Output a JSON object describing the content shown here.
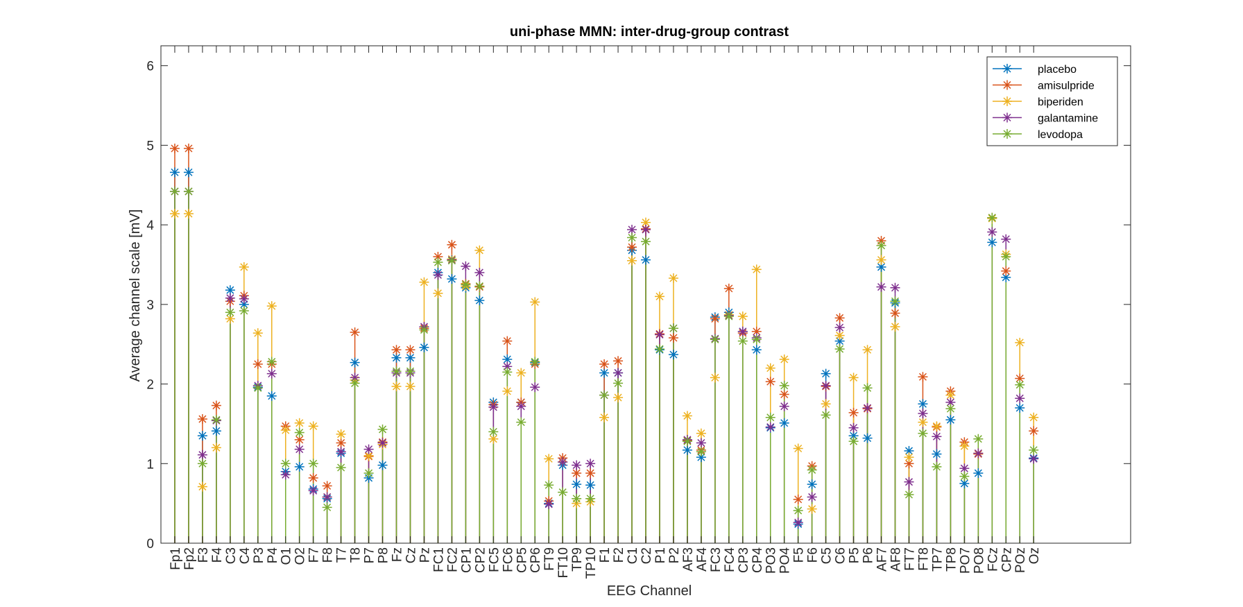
{
  "chart_data": {
    "type": "stem",
    "title": "uni-phase MMN: inter-drug-group contrast",
    "xlabel": "EEG Channel",
    "ylabel": "Average channel scale [mV]",
    "ylim": [
      0,
      6.25
    ],
    "yticks": [
      0,
      1,
      2,
      3,
      4,
      5,
      6
    ],
    "xlim": [
      0,
      70
    ],
    "grid": false,
    "legend_position": "top-right",
    "categories": [
      "Fp1",
      "Fp2",
      "F3",
      "F4",
      "C3",
      "C4",
      "P3",
      "P4",
      "O1",
      "O2",
      "F7",
      "F8",
      "T7",
      "T8",
      "P7",
      "P8",
      "Fz",
      "Cz",
      "Pz",
      "FC1",
      "FC2",
      "CP1",
      "CP2",
      "FC5",
      "FC6",
      "CP5",
      "CP6",
      "FT9",
      "FT10",
      "TP9",
      "TP10",
      "F1",
      "F2",
      "C1",
      "C2",
      "P1",
      "P2",
      "AF3",
      "AF4",
      "FC3",
      "FC4",
      "CP3",
      "CP4",
      "PO3",
      "PO4",
      "F5",
      "F6",
      "C5",
      "C6",
      "P5",
      "P6",
      "AF7",
      "AF8",
      "FT7",
      "FT8",
      "TP7",
      "TP8",
      "PO7",
      "PO8",
      "FCz",
      "CPz",
      "POz",
      "Oz"
    ],
    "series": [
      {
        "name": "placebo",
        "color": "#0072BD",
        "values": [
          4.66,
          4.66,
          1.35,
          1.41,
          3.18,
          3.0,
          1.96,
          1.85,
          0.9,
          0.96,
          0.68,
          0.56,
          1.13,
          2.27,
          0.82,
          0.98,
          2.33,
          2.33,
          2.46,
          3.4,
          3.32,
          3.21,
          3.05,
          1.77,
          2.31,
          1.77,
          2.27,
          0.5,
          0.98,
          0.74,
          0.73,
          2.14,
          2.14,
          3.68,
          3.56,
          2.43,
          2.37,
          1.17,
          1.08,
          2.84,
          2.9,
          2.66,
          2.43,
          1.45,
          1.51,
          0.24,
          0.74,
          2.13,
          2.54,
          1.35,
          1.32,
          3.47,
          3.02,
          1.16,
          1.75,
          1.12,
          1.55,
          0.75,
          0.88,
          3.78,
          3.34,
          1.7,
          1.07
        ]
      },
      {
        "name": "amisulpride",
        "color": "#D95319",
        "values": [
          4.96,
          4.96,
          1.56,
          1.73,
          3.04,
          3.11,
          2.25,
          2.25,
          1.47,
          1.3,
          0.82,
          0.72,
          1.26,
          2.65,
          1.09,
          1.27,
          2.43,
          2.43,
          2.7,
          3.6,
          3.75,
          3.26,
          3.22,
          1.74,
          2.54,
          1.77,
          2.25,
          0.53,
          1.07,
          0.88,
          0.88,
          2.25,
          2.29,
          3.72,
          3.95,
          2.63,
          2.58,
          1.29,
          1.17,
          2.82,
          3.2,
          2.64,
          2.66,
          2.03,
          1.87,
          0.55,
          0.97,
          1.97,
          2.83,
          1.64,
          1.69,
          3.8,
          2.89,
          1.0,
          2.09,
          1.46,
          1.91,
          1.27,
          1.12,
          4.09,
          3.42,
          2.07,
          1.41
        ]
      },
      {
        "name": "biperiden",
        "color": "#EDB120",
        "values": [
          4.14,
          4.14,
          0.71,
          1.2,
          2.82,
          3.47,
          2.64,
          2.98,
          1.42,
          1.51,
          1.47,
          0.58,
          1.37,
          2.05,
          1.1,
          1.24,
          1.97,
          1.97,
          3.28,
          3.14,
          3.57,
          3.23,
          3.68,
          1.31,
          1.91,
          2.14,
          3.03,
          1.06,
          1.02,
          0.5,
          0.52,
          1.58,
          1.83,
          3.55,
          4.03,
          3.1,
          3.33,
          1.6,
          1.38,
          2.08,
          2.87,
          2.85,
          3.44,
          2.2,
          2.31,
          1.19,
          0.43,
          1.75,
          2.61,
          2.08,
          2.43,
          3.56,
          2.72,
          1.08,
          1.52,
          1.47,
          1.86,
          1.22,
          1.13,
          4.08,
          3.63,
          2.52,
          1.58
        ]
      },
      {
        "name": "galantamine",
        "color": "#7E2F8E",
        "values": [
          4.42,
          4.42,
          1.11,
          1.54,
          3.08,
          3.07,
          1.98,
          2.13,
          0.86,
          1.18,
          0.66,
          0.58,
          1.15,
          2.08,
          1.18,
          1.26,
          2.14,
          2.14,
          2.72,
          3.37,
          3.56,
          3.48,
          3.4,
          1.71,
          2.22,
          1.72,
          1.96,
          0.49,
          1.02,
          0.98,
          1.0,
          1.86,
          2.14,
          3.94,
          3.94,
          2.62,
          2.7,
          1.3,
          1.26,
          2.57,
          2.86,
          2.66,
          2.58,
          1.46,
          1.72,
          0.26,
          0.58,
          1.98,
          2.71,
          1.45,
          1.7,
          3.22,
          3.21,
          0.77,
          1.63,
          1.34,
          1.77,
          0.94,
          1.13,
          3.91,
          3.82,
          1.82,
          1.06
        ]
      },
      {
        "name": "levodopa",
        "color": "#77AC30",
        "values": [
          4.42,
          4.42,
          1.0,
          1.55,
          2.9,
          2.92,
          1.95,
          2.28,
          1.0,
          1.39,
          1.0,
          0.45,
          0.95,
          2.01,
          0.88,
          1.43,
          2.16,
          2.16,
          2.68,
          3.53,
          3.55,
          3.25,
          3.23,
          1.4,
          2.15,
          1.52,
          2.28,
          0.73,
          0.64,
          0.56,
          0.56,
          1.86,
          2.01,
          3.84,
          3.79,
          2.44,
          2.7,
          1.28,
          1.15,
          2.56,
          2.85,
          2.54,
          2.56,
          1.58,
          1.98,
          0.41,
          0.92,
          1.61,
          2.44,
          1.28,
          1.95,
          3.74,
          3.04,
          0.61,
          1.38,
          0.96,
          1.69,
          0.84,
          1.31,
          4.09,
          3.6,
          1.99,
          1.17
        ]
      }
    ]
  }
}
